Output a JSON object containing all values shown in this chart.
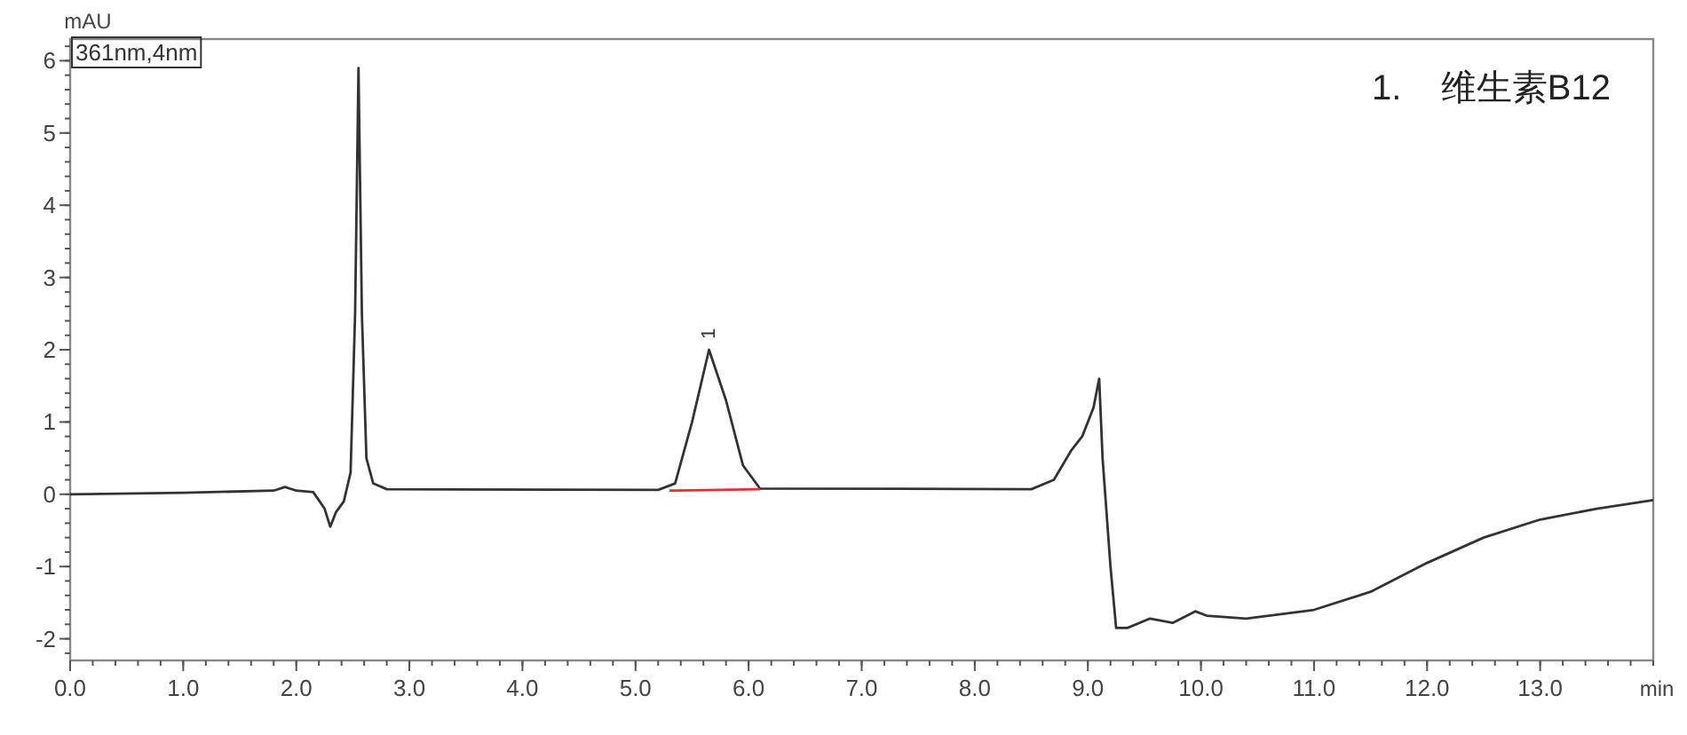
{
  "chart_data": {
    "type": "line",
    "xlabel": "min",
    "ylabel": "mAU",
    "annotations": [
      "361nm,4nm",
      "1.    维生素B12",
      {
        "text": "1",
        "x": 5.7,
        "y": 2.1
      }
    ],
    "xlim": [
      0,
      14
    ],
    "ylim": [
      -2.3,
      6.3
    ],
    "xticks": [
      {
        "value": 0,
        "label": "0.0"
      },
      {
        "value": 1,
        "label": "1.0"
      },
      {
        "value": 2,
        "label": "2.0"
      },
      {
        "value": 3,
        "label": "3.0"
      },
      {
        "value": 4,
        "label": "4.0"
      },
      {
        "value": 5,
        "label": "5.0"
      },
      {
        "value": 6,
        "label": "6.0"
      },
      {
        "value": 7,
        "label": "7.0"
      },
      {
        "value": 8,
        "label": "8.0"
      },
      {
        "value": 9,
        "label": "9.0"
      },
      {
        "value": 10,
        "label": "10.0"
      },
      {
        "value": 11,
        "label": "11.0"
      },
      {
        "value": 12,
        "label": "12.0"
      },
      {
        "value": 13,
        "label": "13.0"
      }
    ],
    "yticks": [
      -2,
      -1,
      0,
      1,
      2,
      3,
      4,
      5,
      6
    ],
    "series": [
      {
        "color": "#333333",
        "x": [
          0,
          1.0,
          1.8,
          1.9,
          2.0,
          2.15,
          2.25,
          2.3,
          2.35,
          2.42,
          2.48,
          2.52,
          2.55,
          2.58,
          2.62,
          2.68,
          2.8,
          5.2,
          5.35,
          5.5,
          5.65,
          5.8,
          5.95,
          6.1,
          8.5,
          8.7,
          8.85,
          8.95,
          9.05,
          9.1,
          9.13,
          9.2,
          9.25,
          9.35,
          9.55,
          9.75,
          9.95,
          10.05,
          10.4,
          11.0,
          11.5,
          12.0,
          12.5,
          13.0,
          13.5,
          14.0
        ],
        "values": [
          0,
          0.02,
          0.05,
          0.1,
          0.05,
          0.03,
          -0.2,
          -0.45,
          -0.25,
          -0.1,
          0.3,
          2.5,
          5.9,
          2.5,
          0.5,
          0.15,
          0.07,
          0.06,
          0.15,
          1.0,
          2.0,
          1.3,
          0.4,
          0.08,
          0.07,
          0.2,
          0.6,
          0.8,
          1.2,
          1.6,
          0.5,
          -1.0,
          -1.85,
          -1.85,
          -1.72,
          -1.78,
          -1.62,
          -1.68,
          -1.72,
          -1.6,
          -1.35,
          -0.95,
          -0.6,
          -0.35,
          -0.2,
          -0.08
        ]
      },
      {
        "color": "#e03030",
        "x": [
          5.3,
          6.1
        ],
        "values": [
          0.05,
          0.07
        ]
      }
    ]
  }
}
